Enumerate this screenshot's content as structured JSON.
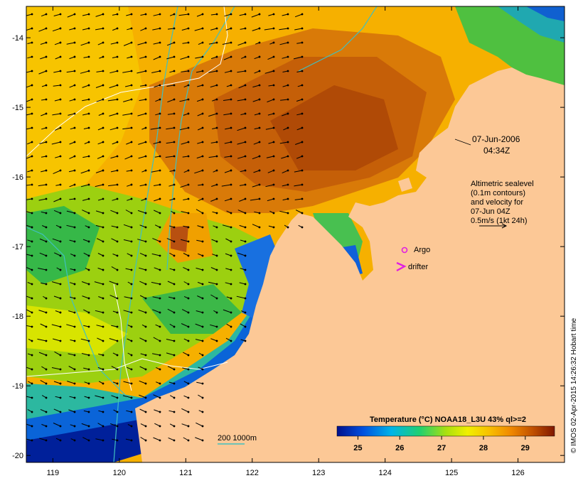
{
  "map": {
    "lon_range": [
      118.6,
      126.7
    ],
    "lat_range": [
      -20.1,
      -13.55
    ],
    "x_ticks": [
      119,
      120,
      121,
      122,
      123,
      124,
      125,
      126
    ],
    "y_ticks": [
      -14,
      -15,
      -16,
      -17,
      -18,
      -19,
      -20
    ],
    "land_color": "#fcc896",
    "ocean_low_color": "#00209a"
  },
  "annotations": {
    "date": "07-Jun-2006",
    "time": "04:34Z",
    "alt_line1": "Altimetric sealevel",
    "alt_line2": "(0.1m contours)",
    "alt_line3": "and velocity for",
    "alt_line4": "07-Jun 04Z",
    "alt_line5": "0.5m/s (1kt 24h)",
    "argo_label": "Argo",
    "drifter_label": "drifter",
    "depth_legend": "200  1000m"
  },
  "colorbar": {
    "title": "Temperature (°C) NOAA18_L3U 43% ql>=2",
    "ticks": [
      25,
      26,
      27,
      28,
      29
    ],
    "range": [
      24.5,
      29.7
    ]
  },
  "credit": "© IMOS 02-Apr-2015 14:26:32 Hobart time",
  "legend_colors": {
    "argo": "#e020e0",
    "drifter": "#e020e0",
    "isobath": "#40c0c0"
  }
}
